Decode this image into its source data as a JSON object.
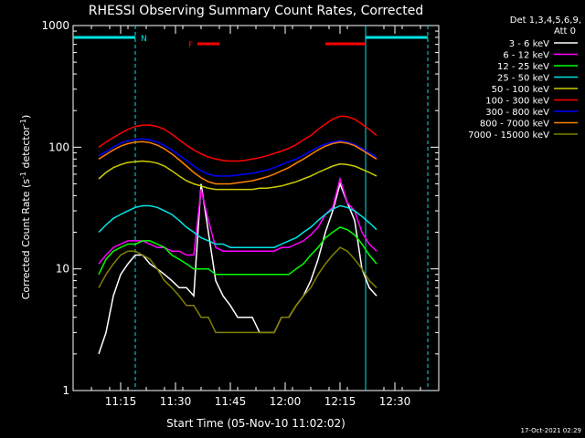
{
  "chart_data": {
    "type": "line",
    "title": "RHESSI Observing Summary Count Rates, Corrected",
    "xlabel": "Start Time (05-Nov-10 11:02:02)",
    "ylabel_main": "Corrected Count Rate (s",
    "ylabel_sup1": "-1",
    "ylabel_mid": " detector",
    "ylabel_sup2": "-1",
    "ylabel_end": ")",
    "y_scale": "log",
    "ylim": [
      1,
      1000
    ],
    "xlim": [
      "11:02",
      "12:42"
    ],
    "x_ticks": [
      "11:15",
      "11:30",
      "11:45",
      "12:00",
      "12:15",
      "12:30"
    ],
    "y_ticks": [
      "1",
      "10",
      "100",
      "1000"
    ],
    "legend_header": [
      "Det 1,3,4,5,6,9,",
      "Att 0"
    ],
    "legend_placement": "right",
    "timestamp": "17-Oct-2021 02:29",
    "flags": [
      {
        "label": "N",
        "kind": "night",
        "color": "#00e5e5",
        "ranges": [
          [
            "11:02",
            "11:19"
          ],
          [
            "12:22",
            "12:39"
          ]
        ]
      },
      {
        "label": "F",
        "kind": "flare",
        "color": "#ff0000",
        "ranges": [
          [
            "11:36",
            "11:42"
          ],
          [
            "12:11",
            "12:22"
          ]
        ]
      }
    ],
    "vlines": [
      {
        "x": "11:19",
        "style": "dashed",
        "color": "#00e5e5"
      },
      {
        "x": "12:22",
        "style": "solid",
        "color": "#00e5e5"
      },
      {
        "x": "12:39",
        "style": "dashed",
        "color": "#00e5e5"
      }
    ],
    "x": [
      "11:09",
      "11:11",
      "11:13",
      "11:15",
      "11:17",
      "11:19",
      "11:21",
      "11:23",
      "11:25",
      "11:27",
      "11:29",
      "11:31",
      "11:33",
      "11:35",
      "11:37",
      "11:39",
      "11:41",
      "11:43",
      "11:45",
      "11:47",
      "11:49",
      "11:51",
      "11:53",
      "11:55",
      "11:57",
      "11:59",
      "12:01",
      "12:03",
      "12:05",
      "12:07",
      "12:09",
      "12:11",
      "12:13",
      "12:15",
      "12:17",
      "12:19",
      "12:21",
      "12:23",
      "12:25"
    ],
    "series": [
      {
        "name": "3 - 6 keV",
        "color": "#ffffff",
        "values": [
          2,
          3,
          6,
          9,
          11,
          13,
          13,
          11,
          10,
          9,
          8,
          7,
          7,
          6,
          50,
          20,
          8,
          6,
          5,
          4,
          4,
          4,
          3,
          3,
          3,
          4,
          4,
          5,
          6,
          8,
          12,
          20,
          30,
          50,
          35,
          25,
          10,
          7,
          6
        ]
      },
      {
        "name": "6 - 12 keV",
        "color": "#ff00ff",
        "values": [
          11,
          13,
          15,
          16,
          17,
          17,
          17,
          16,
          15,
          15,
          14,
          14,
          13,
          13,
          45,
          25,
          15,
          14,
          14,
          14,
          14,
          14,
          14,
          14,
          14,
          15,
          15,
          16,
          17,
          19,
          22,
          28,
          32,
          55,
          35,
          30,
          20,
          16,
          14
        ]
      },
      {
        "name": "12 - 25 keV",
        "color": "#00ff00",
        "values": [
          9,
          12,
          14,
          15,
          16,
          16,
          17,
          17,
          16,
          15,
          13,
          12,
          11,
          10,
          10,
          10,
          9,
          9,
          9,
          9,
          9,
          9,
          9,
          9,
          9,
          9,
          9,
          10,
          11,
          13,
          15,
          18,
          20,
          22,
          21,
          19,
          16,
          13,
          11
        ]
      },
      {
        "name": "25 - 50 keV",
        "color": "#00e5e5",
        "values": [
          20,
          23,
          26,
          28,
          30,
          32,
          33,
          33,
          32,
          30,
          28,
          25,
          22,
          20,
          18,
          17,
          16,
          16,
          15,
          15,
          15,
          15,
          15,
          15,
          15,
          16,
          17,
          18,
          20,
          22,
          25,
          28,
          31,
          33,
          32,
          30,
          27,
          24,
          21
        ]
      },
      {
        "name": "50 - 100 keV",
        "color": "#cccc00",
        "values": [
          55,
          62,
          68,
          72,
          75,
          76,
          77,
          76,
          74,
          70,
          64,
          58,
          53,
          50,
          48,
          46,
          45,
          45,
          45,
          45,
          45,
          45,
          46,
          46,
          47,
          48,
          50,
          52,
          55,
          58,
          62,
          66,
          70,
          73,
          72,
          70,
          66,
          62,
          58
        ]
      },
      {
        "name": "100 - 300 keV",
        "color": "#ff0000",
        "values": [
          100,
          110,
          120,
          130,
          140,
          148,
          152,
          152,
          148,
          140,
          128,
          115,
          104,
          95,
          88,
          83,
          80,
          78,
          77,
          77,
          78,
          80,
          82,
          85,
          89,
          93,
          98,
          105,
          115,
          125,
          140,
          155,
          170,
          180,
          178,
          170,
          155,
          140,
          125
        ]
      },
      {
        "name": "300 - 800 keV",
        "color": "#0000ff",
        "values": [
          85,
          92,
          100,
          108,
          113,
          116,
          117,
          115,
          110,
          103,
          95,
          86,
          78,
          70,
          64,
          60,
          58,
          58,
          58,
          59,
          60,
          61,
          63,
          65,
          68,
          72,
          76,
          80,
          86,
          93,
          100,
          106,
          110,
          113,
          110,
          105,
          98,
          90,
          82
        ]
      },
      {
        "name": "800 - 7000 keV",
        "color": "#ff8000",
        "values": [
          80,
          87,
          95,
          102,
          107,
          110,
          111,
          109,
          104,
          97,
          88,
          79,
          70,
          62,
          56,
          52,
          50,
          50,
          50,
          51,
          52,
          53,
          55,
          57,
          60,
          64,
          68,
          74,
          80,
          87,
          95,
          102,
          107,
          110,
          108,
          103,
          95,
          87,
          80
        ]
      },
      {
        "name": "7000 - 15000 keV",
        "color": "#808000",
        "values": [
          7,
          9,
          11,
          13,
          14,
          14,
          13,
          12,
          10,
          8,
          7,
          6,
          5,
          5,
          4,
          4,
          3,
          3,
          3,
          3,
          3,
          3,
          3,
          3,
          3,
          4,
          4,
          5,
          6,
          7,
          9,
          11,
          13,
          15,
          14,
          12,
          10,
          8,
          7
        ]
      }
    ]
  }
}
